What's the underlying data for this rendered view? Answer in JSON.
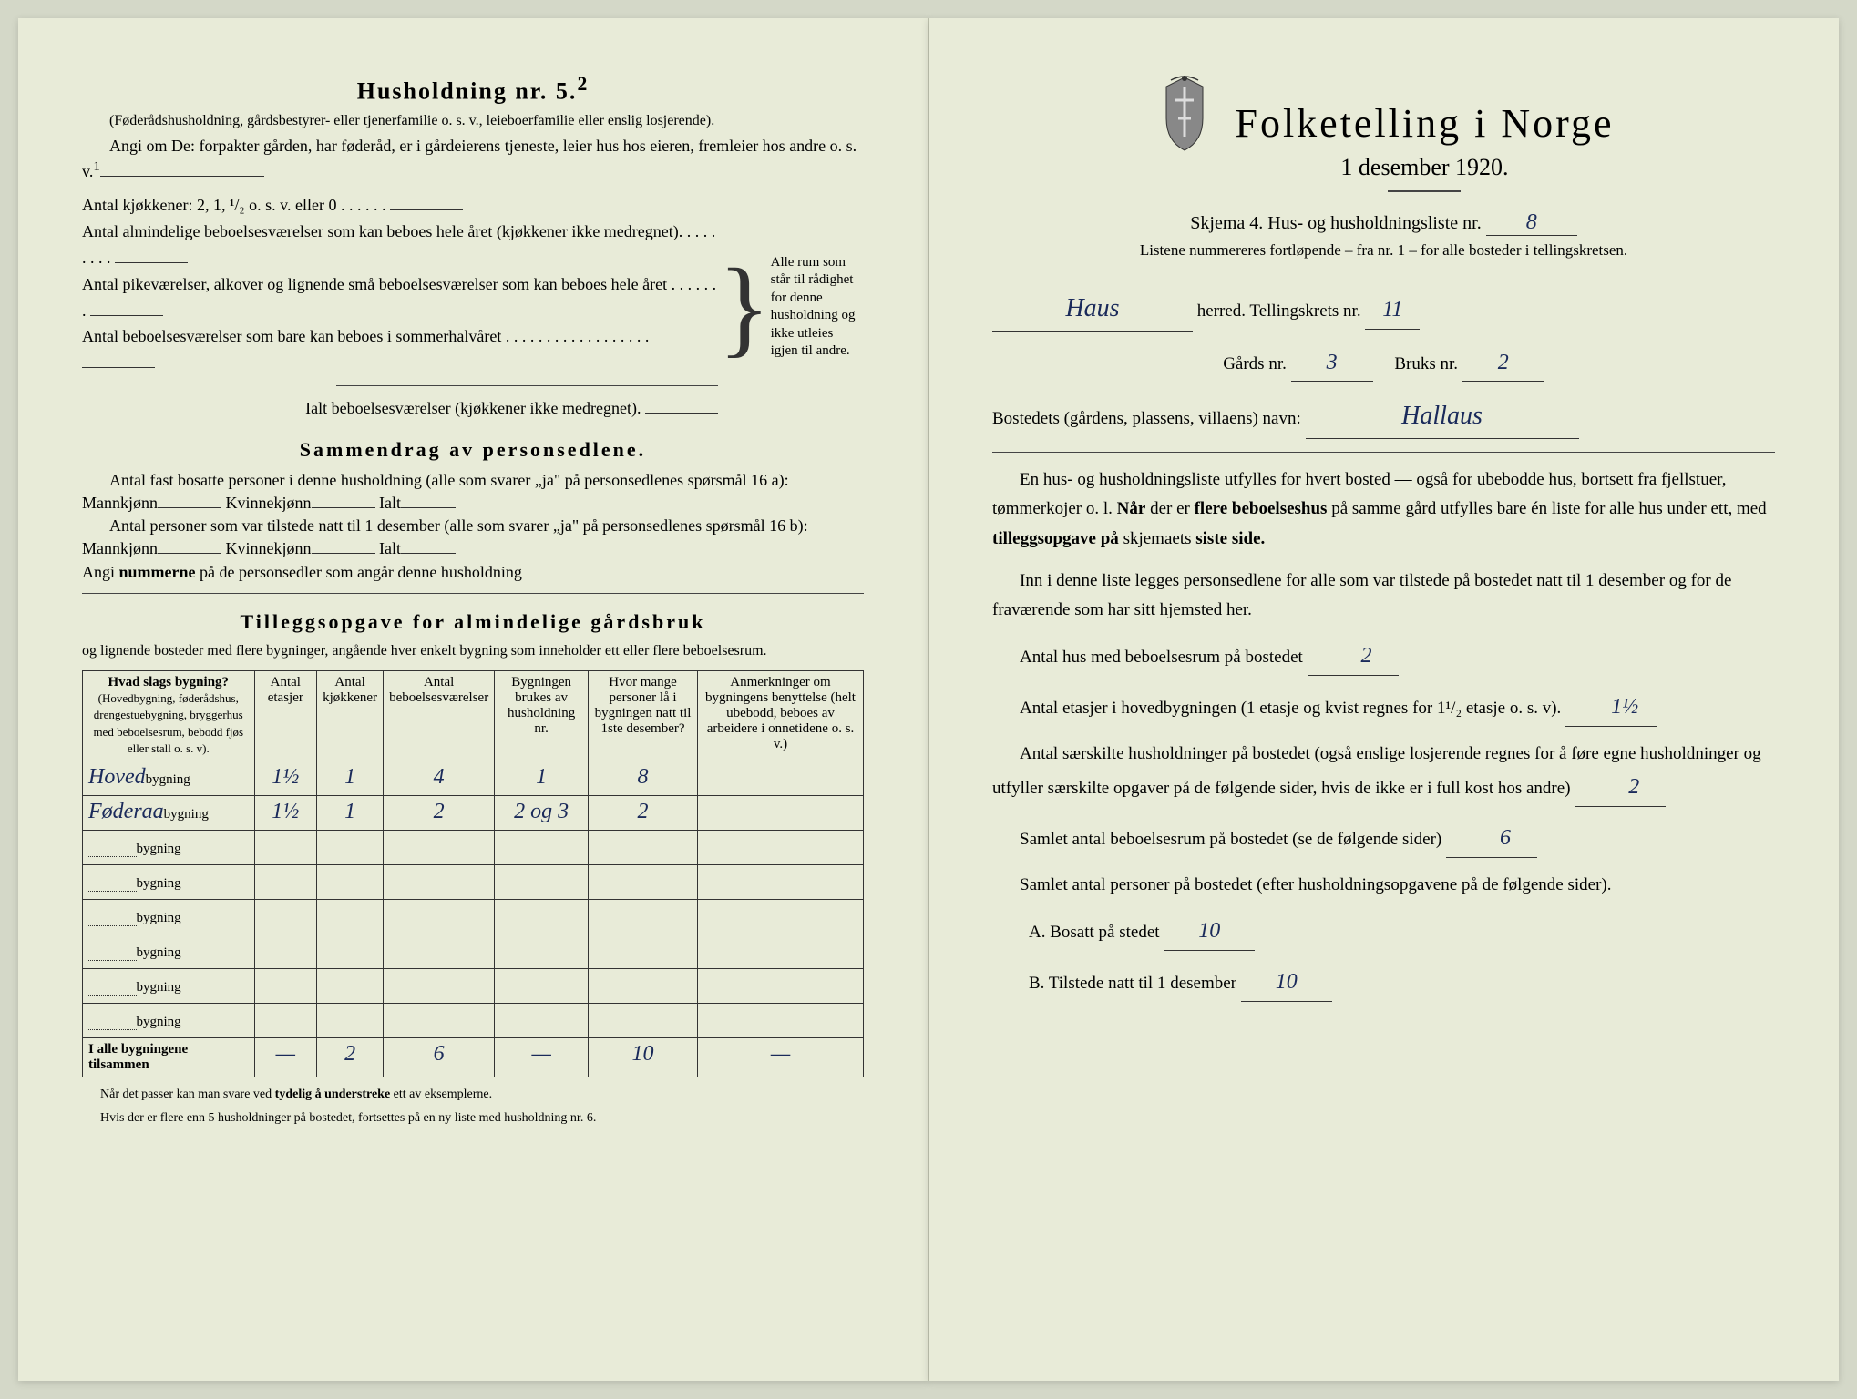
{
  "left": {
    "heading": "Husholdning nr. 5.",
    "heading_sup": "2",
    "sub1": "(Føderådshusholdning, gårdsbestyrer- eller tjenerfamilie o. s. v., leieboerfamilie eller enslig losjerende).",
    "sub2": "Angi om De:  forpakter gården, har føderåd, er i gårdeierens tjeneste, leier hus hos eieren, fremleier hos andre o. s. v.",
    "kjokkener_label": "Antal kjøkkener: 2, 1, ¹/₂ o. s. v. eller 0",
    "almindelige_label": "Antal almindelige beboelsesværelser som kan beboes hele året (kjøkkener ikke medregnet).",
    "pike_label": "Antal pikeværelser, alkover og lignende små beboelsesværelser som kan beboes hele året",
    "sommer_label": "Antal beboelsesværelser som bare kan beboes i sommerhalvåret",
    "ialt_label": "Ialt beboelsesværelser (kjøkkener ikke medregnet).",
    "brace_text": "Alle rum som står til rådighet for denne husholdning og ikke utleies igjen til andre.",
    "sammendrag_title": "Sammendrag av personsedlene.",
    "fast_bosatte": "Antal fast bosatte personer i denne husholdning (alle som svarer „ja\" på personsedlenes spørsmål 16 a): Mannkjønn",
    "kvinnekjonn": "Kvinnekjønn",
    "ialt": "Ialt",
    "tilstede": "Antal personer som var tilstede natt til 1 desember (alle som svarer „ja\" på personsedlenes spørsmål 16 b): Mannkjønn",
    "angi_num": "Angi nummerne på de personsedler som angår denne husholdning",
    "tillegg_title": "Tilleggsopgave for almindelige gårdsbruk",
    "tillegg_sub": "og lignende bosteder med flere bygninger, angående hver enkelt bygning som inneholder ett eller flere beboelsesrum.",
    "table": {
      "columns": [
        "Hvad slags bygning?",
        "Antal etasjer",
        "Antal kjøkkener",
        "Antal beboelsesværelser",
        "Bygningen brukes av husholdning nr.",
        "Hvor mange personer lå i bygningen natt til 1ste desember?",
        "Anmerkninger om bygningens benyttelse (helt ubebodd, beboes av arbeidere i onnetidene o. s. v.)"
      ],
      "col1_sub": "(Hovedbygning, føderådshus, drengestuebygning, bryggerhus med beboelsesrum, bebodd fjøs eller stall o. s. v).",
      "rows": [
        {
          "name": "Hoved",
          "suffix": "bygning",
          "etasjer": "1½",
          "kjokkener": "1",
          "vaer": "4",
          "hushold": "1",
          "pers": "8",
          "anm": ""
        },
        {
          "name": "Føderaa",
          "suffix": "bygning",
          "etasjer": "1½",
          "kjokkener": "1",
          "vaer": "2",
          "hushold": "2 og 3",
          "pers": "2",
          "anm": ""
        },
        {
          "name": "",
          "suffix": "bygning",
          "etasjer": "",
          "kjokkener": "",
          "vaer": "",
          "hushold": "",
          "pers": "",
          "anm": ""
        },
        {
          "name": "",
          "suffix": "bygning",
          "etasjer": "",
          "kjokkener": "",
          "vaer": "",
          "hushold": "",
          "pers": "",
          "anm": ""
        },
        {
          "name": "",
          "suffix": "bygning",
          "etasjer": "",
          "kjokkener": "",
          "vaer": "",
          "hushold": "",
          "pers": "",
          "anm": ""
        },
        {
          "name": "",
          "suffix": "bygning",
          "etasjer": "",
          "kjokkener": "",
          "vaer": "",
          "hushold": "",
          "pers": "",
          "anm": ""
        },
        {
          "name": "",
          "suffix": "bygning",
          "etasjer": "",
          "kjokkener": "",
          "vaer": "",
          "hushold": "",
          "pers": "",
          "anm": ""
        },
        {
          "name": "",
          "suffix": "bygning",
          "etasjer": "",
          "kjokkener": "",
          "vaer": "",
          "hushold": "",
          "pers": "",
          "anm": ""
        }
      ],
      "total_label": "I alle bygningene tilsammen",
      "total": {
        "etasjer": "—",
        "kjokkener": "2",
        "vaer": "6",
        "hushold": "—",
        "pers": "10",
        "anm": "—"
      }
    },
    "foot1": "Når det passer kan man svare ved tydelig å understreke ett av eksemplerne.",
    "foot2": "Hvis der er flere enn 5 husholdninger på bostedet, fortsettes på en ny liste med husholdning nr. 6."
  },
  "right": {
    "title": "Folketelling i Norge",
    "date": "1 desember 1920.",
    "skjema": "Skjema 4.  Hus- og husholdningsliste nr.",
    "skjema_val": "8",
    "listene": "Listene nummereres fortløpende – fra nr. 1 – for alle bosteder i tellingskretsen.",
    "herred_val": "Haus",
    "herred_label": "herred.   Tellingskrets nr.",
    "tellingskrets_val": "11",
    "gards_label": "Gårds nr.",
    "gards_val": "3",
    "bruks_label": "Bruks nr.",
    "bruks_val": "2",
    "bosted_label": "Bostedets (gårdens, plassens, villaens) navn:",
    "bosted_val": "Hallaus",
    "para1_a": "En hus- og husholdningsliste utfylles for hvert bosted — også for ubebodde hus, bortsett fra fjellstuer, tømmerkojer o. l.  ",
    "para1_b": "Når",
    "para1_c": " der er ",
    "para1_d": "flere beboelseshus",
    "para1_e": " på samme gård utfylles bare én liste for alle hus under ett, med ",
    "para1_f": "tilleggsopgave på",
    "para1_g": " skjemaets ",
    "para1_h": "siste side.",
    "para2": "Inn i denne liste legges personsedlene for alle som var tilstede på bostedet natt til 1 desember og for de fraværende som har sitt hjemsted her.",
    "antal_hus_label": "Antal hus med beboelsesrum på bostedet",
    "antal_hus_val": "2",
    "antal_etasjer_label": "Antal etasjer i hovedbygningen (1 etasje og kvist regnes for 1¹/₂ etasje o. s. v).",
    "antal_etasjer_val": "1½",
    "saerskilte_label": "Antal særskilte husholdninger på bostedet (også enslige losjerende regnes for å føre egne husholdninger og utfyller særskilte opgaver på de følgende sider, hvis de ikke er i full kost hos andre)",
    "saerskilte_val": "2",
    "samlet_beb_label": "Samlet antal beboelsesrum på bostedet (se de følgende sider)",
    "samlet_beb_val": "6",
    "samlet_pers_label": "Samlet antal personer på bostedet (efter husholdningsopgavene på de følgende sider).",
    "bosatt_label": "A.  Bosatt på stedet",
    "bosatt_val": "10",
    "tilstede_label": "B.  Tilstede natt til 1 desember",
    "tilstede_val": "10"
  }
}
